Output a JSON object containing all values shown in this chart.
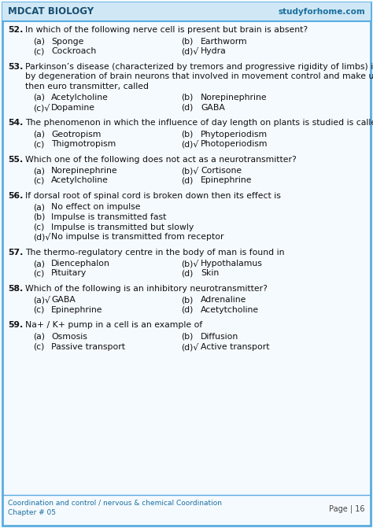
{
  "header_left": "MDCAT BIOLOGY",
  "header_right": "studyforhome.com",
  "header_bg": "#d0e8f5",
  "border_color": "#5aace0",
  "bg_color": "#f5faff",
  "footer_line1": "Coordination and control / nervous & chemical Coordination",
  "footer_line2": "Chapter # 05",
  "footer_page": "Page | 16",
  "questions": [
    {
      "num": "52.",
      "text": "In which of the following nerve cell is present but brain is absent?",
      "options": [
        [
          "(a)",
          "Sponge",
          "(b)",
          "",
          "Earthworm"
        ],
        [
          "(c)",
          "Cockroach",
          "(d)√",
          "",
          "Hydra"
        ]
      ]
    },
    {
      "num": "53.",
      "text": "Parkinson’s disease (characterized by tremors and progressive rigidity of limbs) is caused\nby degeneration of brain neurons that involved in movement control and make use of\nthen euro transmitter, called",
      "options": [
        [
          "(a)",
          "Acetylcholine",
          "(b)",
          "",
          "Norepinephrine"
        ],
        [
          "(c)√",
          "Dopamine",
          "(d)",
          "",
          "GABA"
        ]
      ]
    },
    {
      "num": "54.",
      "text": "The phenomenon in which the influence of day length on plants is studied is called:",
      "options": [
        [
          "(a)",
          "Geotropism",
          "(b)",
          "",
          "Phytoperiodism"
        ],
        [
          "(c)",
          "Thigmotropism",
          "(d)√",
          "",
          "Photoperiodism"
        ]
      ]
    },
    {
      "num": "55.",
      "text": "Which one of the following does not act as a neurotransmitter?",
      "options": [
        [
          "(a)",
          "Norepinephrine",
          "(b)√",
          "",
          "Cortisone"
        ],
        [
          "(c)",
          "Acetylcholine",
          "(d)",
          "",
          "Epinephrine"
        ]
      ]
    },
    {
      "num": "56.",
      "text": "If dorsal root of spinal cord is broken down then its effect is",
      "options_single": [
        [
          "(a)",
          "No effect on impulse"
        ],
        [
          "(b)",
          "Impulse is transmitted fast"
        ],
        [
          "(c)",
          "Impulse is transmitted but slowly"
        ],
        [
          "(d)√",
          "No impulse is transmitted from receptor"
        ]
      ]
    },
    {
      "num": "57.",
      "text": "The thermo-regulatory centre in the body of man is found in",
      "options": [
        [
          "(a)",
          "Diencephalon",
          "(b)√",
          "",
          "Hypothalamus"
        ],
        [
          "(c)",
          "Pituitary",
          "(d)",
          "",
          "Skin"
        ]
      ]
    },
    {
      "num": "58.",
      "text": "Which of the following is an inhibitory neurotransmitter?",
      "options": [
        [
          "(a)√",
          "GABA",
          "(b)",
          "",
          "Adrenaline"
        ],
        [
          "(c)",
          "Epinephrine",
          "(d)",
          "",
          "Acetytcholine"
        ]
      ]
    },
    {
      "num": "59.",
      "text": "Na+ / K+ pump in a cell is an example of",
      "options": [
        [
          "(a)",
          "Osmosis",
          "(b)",
          "",
          "Diffusion"
        ],
        [
          "(c)",
          "Passive transport",
          "(d)√",
          "",
          "Active transport"
        ]
      ]
    }
  ]
}
